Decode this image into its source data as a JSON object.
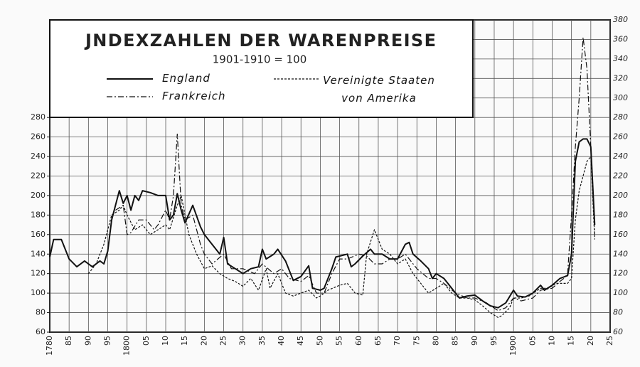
{
  "chart_data": {
    "type": "line",
    "title": "JNDEXZAHLEN DER WARENPREISE",
    "subtitle": "1901-1910 = 100",
    "xlim": [
      1780,
      1925
    ],
    "xticks": [
      1780,
      {
        "value": 1785,
        "label": "85"
      },
      {
        "value": 1790,
        "label": "90"
      },
      {
        "value": 1795,
        "label": "95"
      },
      1800,
      {
        "value": 1805,
        "label": "05"
      },
      {
        "value": 1810,
        "label": "10"
      },
      {
        "value": 1815,
        "label": "15"
      },
      {
        "value": 1820,
        "label": "20"
      },
      {
        "value": 1825,
        "label": "25"
      },
      {
        "value": 1830,
        "label": "30"
      },
      {
        "value": 1835,
        "label": "35"
      },
      {
        "value": 1840,
        "label": "40"
      },
      {
        "value": 1845,
        "label": "45"
      },
      {
        "value": 1850,
        "label": "50"
      },
      {
        "value": 1855,
        "label": "55"
      },
      {
        "value": 1860,
        "label": "60"
      },
      {
        "value": 1865,
        "label": "65"
      },
      {
        "value": 1870,
        "label": "70"
      },
      {
        "value": 1875,
        "label": "75"
      },
      {
        "value": 1880,
        "label": "80"
      },
      {
        "value": 1885,
        "label": "85"
      },
      {
        "value": 1890,
        "label": "90"
      },
      {
        "value": 1895,
        "label": "95"
      },
      1900,
      {
        "value": 1905,
        "label": "05"
      },
      {
        "value": 1910,
        "label": "10"
      },
      {
        "value": 1915,
        "label": "15"
      },
      {
        "value": 1920,
        "label": "20"
      },
      {
        "value": 1925,
        "label": "25"
      }
    ],
    "ylim": [
      60,
      380
    ],
    "yticks": [
      60,
      80,
      100,
      120,
      140,
      160,
      180,
      200,
      220,
      240,
      260,
      280
    ],
    "y2lim": [
      60,
      380
    ],
    "y2ticks": [
      60,
      80,
      100,
      120,
      140,
      160,
      180,
      200,
      220,
      240,
      260,
      280,
      300,
      320,
      340,
      360,
      380
    ],
    "grid": true,
    "series": [
      {
        "name": "England",
        "color": "#111111",
        "style": "solid",
        "x": [
          1780,
          1781,
          1783,
          1785,
          1787,
          1789,
          1791,
          1793,
          1794,
          1795,
          1796,
          1797,
          1798,
          1799,
          1800,
          1801,
          1802,
          1803,
          1804,
          1806,
          1808,
          1810,
          1811,
          1812,
          1813,
          1814,
          1815,
          1817,
          1819,
          1820,
          1822,
          1824,
          1825,
          1826,
          1828,
          1830,
          1832,
          1834,
          1835,
          1836,
          1838,
          1839,
          1841,
          1843,
          1845,
          1847,
          1848,
          1850,
          1851,
          1853,
          1854,
          1857,
          1858,
          1859,
          1861,
          1863,
          1864,
          1866,
          1868,
          1870,
          1872,
          1873,
          1874,
          1876,
          1878,
          1879,
          1880,
          1882,
          1884,
          1886,
          1888,
          1890,
          1892,
          1894,
          1896,
          1898,
          1900,
          1901,
          1903,
          1905,
          1907,
          1908,
          1910,
          1912,
          1914,
          1915,
          1916,
          1917,
          1918,
          1919,
          1920,
          1921
        ],
        "values": [
          137,
          155,
          155,
          135,
          127,
          133,
          127,
          133,
          130,
          143,
          175,
          190,
          205,
          192,
          200,
          185,
          200,
          195,
          205,
          203,
          200,
          200,
          175,
          180,
          202,
          185,
          172,
          190,
          168,
          160,
          150,
          140,
          157,
          130,
          125,
          120,
          125,
          127,
          145,
          135,
          140,
          145,
          133,
          113,
          117,
          128,
          105,
          103,
          105,
          125,
          137,
          140,
          127,
          130,
          138,
          145,
          140,
          140,
          135,
          135,
          150,
          152,
          140,
          133,
          125,
          115,
          120,
          115,
          105,
          95,
          97,
          98,
          92,
          87,
          85,
          90,
          103,
          97,
          96,
          100,
          108,
          103,
          108,
          115,
          118,
          140,
          235,
          255,
          258,
          258,
          250,
          170
        ]
      },
      {
        "name": "Frankreich",
        "color": "#111111",
        "style": "dashdot",
        "x": [
          1797,
          1799,
          1800,
          1801,
          1803,
          1805,
          1807,
          1808,
          1810,
          1811,
          1812,
          1813,
          1814,
          1815,
          1817,
          1819,
          1820,
          1822,
          1825,
          1827,
          1830,
          1833,
          1835,
          1838,
          1840,
          1842,
          1845,
          1847,
          1849,
          1851,
          1853,
          1855,
          1857,
          1860,
          1862,
          1864,
          1866,
          1868,
          1870,
          1872,
          1875,
          1878,
          1880,
          1882,
          1885,
          1888,
          1890,
          1893,
          1896,
          1898,
          1900,
          1902,
          1905,
          1907,
          1910,
          1912,
          1913,
          1914,
          1915,
          1916,
          1917,
          1918,
          1919,
          1920,
          1921
        ],
        "values": [
          185,
          190,
          160,
          162,
          175,
          175,
          165,
          170,
          185,
          175,
          200,
          263,
          190,
          175,
          180,
          150,
          140,
          130,
          140,
          125,
          125,
          120,
          130,
          120,
          125,
          115,
          112,
          118,
          100,
          100,
          120,
          135,
          135,
          140,
          138,
          130,
          130,
          135,
          135,
          140,
          125,
          115,
          115,
          110,
          100,
          95,
          95,
          90,
          82,
          85,
          95,
          92,
          95,
          103,
          105,
          112,
          115,
          120,
          180,
          250,
          300,
          362,
          330,
          250,
          160
        ]
      },
      {
        "name": "Vereinigte Staaten von Amerika",
        "color": "#111111",
        "style": "dashed",
        "x": [
          1790,
          1792,
          1794,
          1796,
          1798,
          1799,
          1800,
          1802,
          1804,
          1806,
          1808,
          1810,
          1811,
          1813,
          1814,
          1816,
          1818,
          1820,
          1822,
          1824,
          1826,
          1828,
          1830,
          1832,
          1834,
          1836,
          1837,
          1839,
          1841,
          1843,
          1845,
          1847,
          1849,
          1850,
          1852,
          1855,
          1857,
          1859,
          1861,
          1862,
          1864,
          1866,
          1868,
          1870,
          1872,
          1874,
          1876,
          1878,
          1880,
          1882,
          1884,
          1886,
          1888,
          1890,
          1892,
          1894,
          1896,
          1897,
          1899,
          1900,
          1902,
          1904,
          1907,
          1909,
          1911,
          1913,
          1914,
          1915,
          1916,
          1917,
          1918,
          1919,
          1920,
          1921
        ],
        "values": [
          120,
          130,
          150,
          180,
          185,
          190,
          180,
          165,
          170,
          160,
          165,
          170,
          165,
          190,
          200,
          160,
          140,
          125,
          128,
          120,
          115,
          112,
          107,
          115,
          103,
          125,
          105,
          120,
          100,
          97,
          100,
          103,
          95,
          97,
          103,
          108,
          110,
          100,
          98,
          140,
          165,
          145,
          140,
          130,
          135,
          120,
          110,
          100,
          105,
          110,
          100,
          95,
          95,
          93,
          87,
          80,
          75,
          77,
          85,
          95,
          95,
          97,
          105,
          105,
          110,
          110,
          110,
          115,
          175,
          205,
          220,
          235,
          240,
          155
        ]
      }
    ]
  }
}
